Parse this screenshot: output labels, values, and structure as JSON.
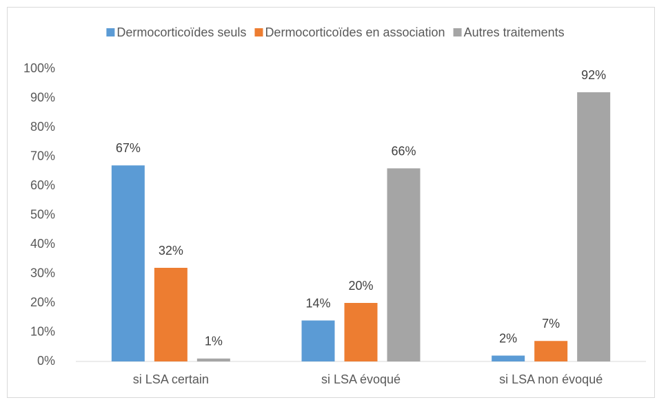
{
  "chart_data": {
    "type": "bar",
    "categories": [
      "si LSA certain",
      "si LSA évoqué",
      "si LSA non évoqué"
    ],
    "series": [
      {
        "name": "Dermocorticoïdes seuls",
        "color": "#5b9bd5",
        "values": [
          67,
          14,
          2
        ],
        "value_labels": [
          "67%",
          "14%",
          "2%"
        ]
      },
      {
        "name": "Dermocorticoïdes en association",
        "color": "#ed7d31",
        "values": [
          32,
          20,
          7
        ],
        "value_labels": [
          "32%",
          "20%",
          "7%"
        ]
      },
      {
        "name": "Autres traitements",
        "color": "#a5a5a5",
        "values": [
          1,
          66,
          92
        ],
        "value_labels": [
          "1%",
          "66%",
          "92%"
        ]
      }
    ],
    "ylim": [
      0,
      100
    ],
    "yticks": [
      {
        "value": 0,
        "label": "0%"
      },
      {
        "value": 10,
        "label": "10%"
      },
      {
        "value": 20,
        "label": "20%"
      },
      {
        "value": 30,
        "label": "30%"
      },
      {
        "value": 40,
        "label": "40%"
      },
      {
        "value": 50,
        "label": "50%"
      },
      {
        "value": 60,
        "label": "60%"
      },
      {
        "value": 70,
        "label": "70%"
      },
      {
        "value": 80,
        "label": "80%"
      },
      {
        "value": 90,
        "label": "90%"
      },
      {
        "value": 100,
        "label": "100%"
      }
    ],
    "grid": false,
    "legend": "top"
  }
}
